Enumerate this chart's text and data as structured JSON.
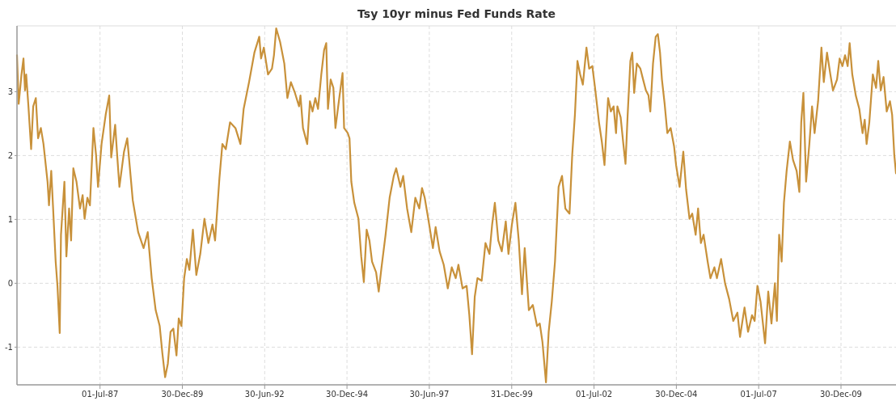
{
  "chart_data": {
    "type": "line",
    "title": "Tsy 10yr minus Fed Funds Rate",
    "x": [
      "1984-12-22",
      "1985-01-10",
      "1985-02-10",
      "1985-03-04",
      "1985-03-21",
      "1985-04-03",
      "1985-04-28",
      "1985-05-28",
      "1985-06-20",
      "1985-07-19",
      "1985-08-13",
      "1985-09-13",
      "1985-10-12",
      "1985-11-26",
      "1985-12-12",
      "1986-01-06",
      "1986-01-25",
      "1986-02-24",
      "1986-03-16",
      "1986-04-10",
      "1986-04-24",
      "1986-05-15",
      "1986-06-01",
      "1986-06-23",
      "1986-07-23",
      "1986-08-14",
      "1986-09-08",
      "1986-10-13",
      "1986-11-21",
      "1986-12-20",
      "1987-01-11",
      "1987-02-11",
      "1987-03-11",
      "1987-04-19",
      "1987-05-18",
      "1987-06-09",
      "1987-07-18",
      "1987-09-02",
      "1987-10-11",
      "1987-11-02",
      "1987-12-16",
      "1988-01-07",
      "1988-02-01",
      "1988-03-23",
      "1988-04-28",
      "1988-06-28",
      "1988-08-27",
      "1988-10-26",
      "1988-12-11",
      "1989-01-24",
      "1989-03-09",
      "1989-04-23",
      "1989-05-22",
      "1989-06-22",
      "1989-07-22",
      "1989-08-21",
      "1989-09-21",
      "1989-10-26",
      "1989-11-20",
      "1989-12-20",
      "1990-01-19",
      "1990-02-18",
      "1990-03-18",
      "1990-04-26",
      "1990-06-03",
      "1990-07-17",
      "1990-09-01",
      "1990-10-15",
      "1990-11-29",
      "1990-12-28",
      "1991-02-14",
      "1991-03-19",
      "1991-04-26",
      "1991-06-12",
      "1991-08-11",
      "1991-10-05",
      "1991-11-10",
      "1992-01-09",
      "1992-03-08",
      "1992-05-01",
      "1992-05-21",
      "1992-06-21",
      "1992-08-06",
      "1992-09-19",
      "1992-10-11",
      "1992-11-05",
      "1992-12-18",
      "1993-02-03",
      "1993-03-09",
      "1993-04-17",
      "1993-06-01",
      "1993-07-16",
      "1993-08-01",
      "1993-08-29",
      "1993-10-15",
      "1993-11-14",
      "1993-12-13",
      "1994-01-13",
      "1994-02-12",
      "1994-03-20",
      "1994-04-20",
      "1994-05-14",
      "1994-06-02",
      "1994-07-02",
      "1994-08-01",
      "1994-08-24",
      "1994-10-09",
      "1994-11-11",
      "1994-11-28",
      "1995-01-08",
      "1995-01-27",
      "1995-02-16",
      "1995-03-21",
      "1995-05-06",
      "1995-06-06",
      "1995-07-05",
      "1995-08-05",
      "1995-09-05",
      "1995-10-04",
      "1995-11-18",
      "1995-12-17",
      "1996-01-17",
      "1996-03-02",
      "1996-04-16",
      "1996-06-01",
      "1996-06-28",
      "1996-08-14",
      "1996-09-13",
      "1996-10-27",
      "1996-12-12",
      "1997-01-26",
      "1997-03-11",
      "1997-04-10",
      "1997-05-10",
      "1997-06-23",
      "1997-08-09",
      "1997-09-08",
      "1997-10-22",
      "1997-12-07",
      "1998-01-21",
      "1998-03-06",
      "1998-04-19",
      "1998-05-19",
      "1998-07-04",
      "1998-08-18",
      "1998-09-17",
      "1998-10-17",
      "1998-11-16",
      "1998-12-16",
      "1999-02-01",
      "1999-03-15",
      "1999-04-28",
      "1999-05-28",
      "1999-06-27",
      "1999-08-04",
      "1999-09-12",
      "1999-10-26",
      "1999-11-25",
      "2000-01-02",
      "2000-02-10",
      "2000-03-18",
      "2000-04-23",
      "2000-05-23",
      "2000-07-08",
      "2000-08-21",
      "2000-10-07",
      "2000-11-06",
      "2000-12-06",
      "2001-01-14",
      "2001-02-13",
      "2001-03-19",
      "2001-04-24",
      "2001-06-03",
      "2001-07-11",
      "2001-08-17",
      "2001-10-02",
      "2001-11-01",
      "2001-12-01",
      "2001-12-29",
      "2002-01-28",
      "2002-02-27",
      "2002-04-08",
      "2002-05-08",
      "2002-06-12",
      "2002-07-12",
      "2002-08-25",
      "2002-09-25",
      "2002-10-25",
      "2002-12-04",
      "2003-01-03",
      "2003-02-03",
      "2003-03-02",
      "2003-03-17",
      "2003-04-22",
      "2003-05-22",
      "2003-06-15",
      "2003-07-09",
      "2003-08-08",
      "2003-08-29",
      "2003-09-19",
      "2003-10-19",
      "2003-11-27",
      "2003-12-27",
      "2004-01-27",
      "2004-02-25",
      "2004-03-16",
      "2004-04-15",
      "2004-05-15",
      "2004-06-08",
      "2004-07-02",
      "2004-07-23",
      "2004-08-22",
      "2004-09-21",
      "2004-10-28",
      "2004-12-05",
      "2004-12-27",
      "2005-02-04",
      "2005-03-17",
      "2005-04-17",
      "2005-05-25",
      "2005-06-24",
      "2005-08-01",
      "2005-08-28",
      "2005-09-28",
      "2005-10-28",
      "2005-12-12",
      "2006-01-12",
      "2006-02-25",
      "2006-03-25",
      "2006-05-10",
      "2006-06-23",
      "2006-08-08",
      "2006-09-22",
      "2006-11-07",
      "2006-12-06",
      "2007-01-25",
      "2007-03-05",
      "2007-04-18",
      "2007-05-17",
      "2007-06-17",
      "2007-07-22",
      "2007-09-10",
      "2007-10-15",
      "2007-11-20",
      "2007-12-28",
      "2008-01-19",
      "2008-02-13",
      "2008-03-12",
      "2008-04-06",
      "2008-05-06",
      "2008-06-11",
      "2008-07-16",
      "2008-08-25",
      "2008-09-24",
      "2008-10-15",
      "2008-11-08",
      "2008-12-08",
      "2009-01-13",
      "2009-02-12",
      "2009-03-12",
      "2009-04-20",
      "2009-05-27",
      "2009-06-22",
      "2009-07-28",
      "2009-09-03",
      "2009-10-02",
      "2009-11-16",
      "2009-12-15",
      "2010-01-15",
      "2010-02-13",
      "2010-03-14",
      "2010-04-05",
      "2010-05-04",
      "2010-06-12",
      "2010-07-21",
      "2010-08-26",
      "2010-09-19",
      "2010-10-10",
      "2010-11-09",
      "2010-12-18",
      "2011-01-23",
      "2011-02-16",
      "2011-03-16",
      "2011-04-16",
      "2011-05-21",
      "2011-06-26",
      "2011-07-20",
      "2011-08-13",
      "2011-09-01"
    ],
    "series": [
      {
        "color": "#c8913a",
        "values": [
          3.57,
          2.81,
          3.27,
          3.52,
          3.02,
          3.27,
          2.77,
          2.1,
          2.77,
          2.9,
          2.27,
          2.43,
          2.18,
          1.59,
          1.22,
          1.76,
          1.22,
          0.34,
          -0.04,
          -0.78,
          0.76,
          1.22,
          1.59,
          0.42,
          1.17,
          0.67,
          1.8,
          1.59,
          1.17,
          1.38,
          1.01,
          1.34,
          1.22,
          2.43,
          2.01,
          1.51,
          2.18,
          2.64,
          2.94,
          1.97,
          2.48,
          2.01,
          1.51,
          2.06,
          2.27,
          1.3,
          0.8,
          0.55,
          0.8,
          0.08,
          -0.42,
          -0.67,
          -1.09,
          -1.47,
          -1.26,
          -0.76,
          -0.71,
          -1.13,
          -0.55,
          -0.67,
          0.08,
          0.38,
          0.21,
          0.84,
          0.13,
          0.46,
          1.01,
          0.63,
          0.92,
          0.67,
          1.64,
          2.18,
          2.1,
          2.52,
          2.43,
          2.18,
          2.73,
          3.15,
          3.61,
          3.86,
          3.52,
          3.69,
          3.27,
          3.36,
          3.57,
          3.99,
          3.78,
          3.44,
          2.9,
          3.15,
          2.98,
          2.77,
          2.94,
          2.43,
          2.18,
          2.85,
          2.69,
          2.9,
          2.73,
          3.27,
          3.65,
          3.76,
          2.73,
          3.19,
          3.06,
          2.43,
          2.94,
          3.29,
          2.43,
          2.35,
          2.27,
          1.59,
          1.26,
          1.01,
          0.42,
          0.02,
          0.84,
          0.67,
          0.34,
          0.17,
          -0.13,
          0.25,
          0.76,
          1.34,
          1.68,
          1.8,
          1.51,
          1.68,
          1.17,
          0.8,
          1.34,
          1.17,
          1.49,
          1.34,
          0.97,
          0.55,
          0.88,
          0.5,
          0.29,
          -0.08,
          0.25,
          0.08,
          0.29,
          -0.08,
          -0.04,
          -0.5,
          -1.11,
          -0.21,
          0.08,
          0.04,
          0.63,
          0.46,
          0.92,
          1.26,
          0.67,
          0.5,
          0.97,
          0.46,
          0.92,
          1.26,
          0.67,
          -0.17,
          0.55,
          -0.42,
          -0.34,
          -0.67,
          -0.63,
          -0.92,
          -1.55,
          -0.76,
          -0.29,
          0.34,
          1.51,
          1.68,
          1.17,
          1.09,
          2.01,
          2.64,
          3.48,
          3.27,
          3.11,
          3.69,
          3.36,
          3.4,
          3.06,
          2.52,
          2.22,
          1.85,
          2.9,
          2.69,
          2.77,
          2.35,
          2.77,
          2.6,
          2.18,
          1.87,
          2.64,
          3.48,
          3.61,
          2.98,
          3.44,
          3.36,
          3.19,
          3.02,
          2.94,
          2.69,
          3.44,
          3.86,
          3.9,
          3.61,
          3.19,
          2.81,
          2.35,
          2.43,
          2.14,
          1.85,
          1.51,
          2.06,
          1.47,
          1.01,
          1.09,
          0.76,
          1.17,
          0.63,
          0.76,
          0.34,
          0.08,
          0.25,
          0.08,
          0.38,
          0.0,
          -0.25,
          -0.59,
          -0.46,
          -0.84,
          -0.38,
          -0.76,
          -0.5,
          -0.59,
          -0.04,
          -0.29,
          -0.94,
          -0.13,
          -0.63,
          0.0,
          -0.59,
          0.76,
          0.34,
          1.26,
          1.76,
          2.22,
          1.93,
          1.76,
          1.43,
          2.52,
          2.98,
          1.59,
          2.18,
          2.77,
          2.35,
          2.85,
          3.69,
          3.15,
          3.61,
          3.27,
          3.02,
          3.19,
          3.52,
          3.4,
          3.57,
          3.4,
          3.76,
          3.27,
          2.94,
          2.73,
          2.35,
          2.56,
          2.18,
          2.52,
          3.27,
          3.06,
          3.48,
          3.02,
          3.23,
          2.69,
          2.85,
          2.64,
          2.01,
          1.72
        ]
      }
    ],
    "xlim": [
      "1984-12-22",
      "2011-09-01"
    ],
    "xticks": [
      {
        "value": "1987-07-01",
        "label": "01-Jul-87"
      },
      {
        "value": "1989-12-30",
        "label": "30-Dec-89"
      },
      {
        "value": "1992-06-30",
        "label": "30-Jun-92"
      },
      {
        "value": "1994-12-30",
        "label": "30-Dec-94"
      },
      {
        "value": "1997-06-30",
        "label": "30-Jun-97"
      },
      {
        "value": "1999-12-31",
        "label": "31-Dec-99"
      },
      {
        "value": "2002-07-01",
        "label": "01-Jul-02"
      },
      {
        "value": "2004-12-30",
        "label": "30-Dec-04"
      },
      {
        "value": "2007-07-01",
        "label": "01-Jul-07"
      },
      {
        "value": "2009-12-30",
        "label": "30-Dec-09"
      }
    ],
    "ylim": [
      -1.59,
      4.03
    ],
    "yticks": [
      -1,
      0,
      1,
      2,
      3
    ],
    "grid": true,
    "line_style": "solid"
  }
}
